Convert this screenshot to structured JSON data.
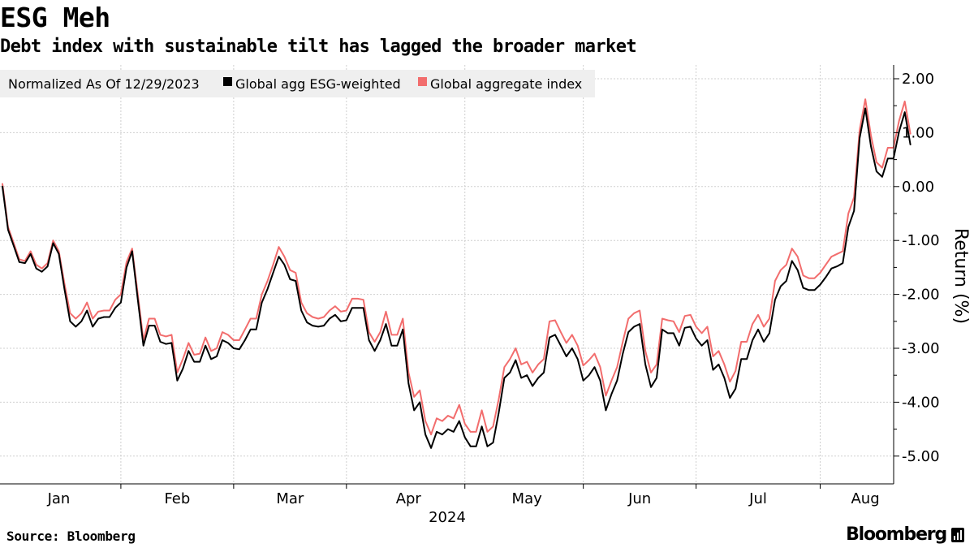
{
  "header": {
    "title": "ESG Meh",
    "subtitle": "Debt index with sustainable tilt has lagged the broader market"
  },
  "footer": {
    "source": "Source: Bloomberg",
    "brand": "Bloomberg"
  },
  "chart_data": {
    "type": "line",
    "title": "ESG Meh",
    "subtitle": "Debt index with sustainable tilt has lagged the broader market",
    "xlabel": "2024",
    "ylabel": "Return (%)",
    "legend_note": "Normalized As Of 12/29/2023",
    "legend_position": "top-left",
    "ylim": [
      -5.5,
      2.2
    ],
    "yticks": [
      2,
      1,
      0,
      -1,
      -2,
      -3,
      -4,
      -5
    ],
    "ytick_labels": [
      "2.00",
      "1.00",
      "0.00",
      "-1.00",
      "-2.00",
      "-3.00",
      "-4.00",
      "-5.00"
    ],
    "xlim": [
      0,
      154
    ],
    "months": [
      {
        "label": "Jan",
        "center": 10,
        "start": 0
      },
      {
        "label": "Feb",
        "center": 31,
        "start": 21
      },
      {
        "label": "Mar",
        "center": 51,
        "start": 41
      },
      {
        "label": "Apr",
        "center": 72,
        "start": 61
      },
      {
        "label": "May",
        "center": 93,
        "start": 82
      },
      {
        "label": "Jun",
        "center": 113,
        "start": 103
      },
      {
        "label": "Jul",
        "center": 134,
        "start": 123
      },
      {
        "label": "Aug",
        "center": 153,
        "start": 145
      }
    ],
    "grid": true,
    "series": [
      {
        "name": "Global agg ESG-weighted",
        "color": "#000000",
        "values": [
          0.0,
          -0.8,
          -1.1,
          -1.4,
          -1.42,
          -1.25,
          -1.52,
          -1.58,
          -1.48,
          -1.05,
          -1.25,
          -1.9,
          -2.5,
          -2.6,
          -2.5,
          -2.3,
          -2.6,
          -2.45,
          -2.42,
          -2.42,
          -2.25,
          -2.15,
          -1.5,
          -1.2,
          -2.1,
          -2.95,
          -2.58,
          -2.58,
          -2.88,
          -2.92,
          -2.9,
          -3.6,
          -3.38,
          -3.05,
          -3.25,
          -3.25,
          -2.95,
          -3.2,
          -3.15,
          -2.85,
          -2.9,
          -3.0,
          -3.02,
          -2.85,
          -2.65,
          -2.65,
          -2.15,
          -1.9,
          -1.6,
          -1.3,
          -1.45,
          -1.72,
          -1.75,
          -2.3,
          -2.52,
          -2.58,
          -2.6,
          -2.58,
          -2.45,
          -2.38,
          -2.5,
          -2.48,
          -2.25,
          -2.25,
          -2.25,
          -2.85,
          -3.05,
          -2.85,
          -2.55,
          -2.95,
          -2.95,
          -2.65,
          -3.65,
          -4.15,
          -4.0,
          -4.6,
          -4.85,
          -4.55,
          -4.6,
          -4.5,
          -4.55,
          -4.35,
          -4.65,
          -4.82,
          -4.82,
          -4.45,
          -4.82,
          -4.75,
          -4.2,
          -3.55,
          -3.45,
          -3.22,
          -3.55,
          -3.5,
          -3.7,
          -3.55,
          -3.45,
          -2.8,
          -2.75,
          -2.95,
          -3.15,
          -3.0,
          -3.2,
          -3.6,
          -3.5,
          -3.35,
          -3.6,
          -4.15,
          -3.85,
          -3.6,
          -3.1,
          -2.7,
          -2.6,
          -2.55,
          -3.3,
          -3.72,
          -3.55,
          -2.65,
          -2.72,
          -2.72,
          -2.95,
          -2.62,
          -2.6,
          -2.82,
          -2.95,
          -2.85,
          -3.4,
          -3.3,
          -3.55,
          -3.92,
          -3.75,
          -3.2,
          -3.2,
          -2.85,
          -2.65,
          -2.88,
          -2.72,
          -2.1,
          -1.85,
          -1.75,
          -1.38,
          -1.55,
          -1.88,
          -1.92,
          -1.92,
          -1.82,
          -1.68,
          -1.52,
          -1.48,
          -1.42,
          -0.75,
          -0.45,
          0.9,
          1.45,
          0.75,
          0.28,
          0.18,
          0.52,
          0.52,
          1.02,
          1.38,
          0.78
        ]
      },
      {
        "name": "Global aggregate index",
        "color": "#f26d6d",
        "values": [
          0.05,
          -0.75,
          -1.05,
          -1.35,
          -1.38,
          -1.2,
          -1.45,
          -1.52,
          -1.42,
          -1.0,
          -1.2,
          -1.8,
          -2.35,
          -2.45,
          -2.35,
          -2.15,
          -2.45,
          -2.32,
          -2.3,
          -2.3,
          -2.1,
          -2.0,
          -1.4,
          -1.15,
          -2.0,
          -2.85,
          -2.45,
          -2.45,
          -2.75,
          -2.78,
          -2.75,
          -3.45,
          -3.2,
          -2.9,
          -3.12,
          -3.1,
          -2.8,
          -3.05,
          -3.0,
          -2.7,
          -2.75,
          -2.85,
          -2.85,
          -2.65,
          -2.45,
          -2.45,
          -2.0,
          -1.75,
          -1.45,
          -1.12,
          -1.3,
          -1.55,
          -1.6,
          -2.15,
          -2.35,
          -2.42,
          -2.45,
          -2.42,
          -2.3,
          -2.22,
          -2.32,
          -2.3,
          -2.08,
          -2.08,
          -2.1,
          -2.7,
          -2.88,
          -2.7,
          -2.32,
          -2.75,
          -2.75,
          -2.45,
          -3.45,
          -3.9,
          -3.78,
          -4.35,
          -4.6,
          -4.3,
          -4.35,
          -4.25,
          -4.3,
          -4.05,
          -4.4,
          -4.55,
          -4.55,
          -4.15,
          -4.55,
          -4.45,
          -3.95,
          -3.35,
          -3.2,
          -3.0,
          -3.3,
          -3.25,
          -3.45,
          -3.3,
          -3.2,
          -2.5,
          -2.48,
          -2.7,
          -2.9,
          -2.75,
          -2.95,
          -3.32,
          -3.22,
          -3.1,
          -3.35,
          -3.88,
          -3.6,
          -3.35,
          -2.88,
          -2.45,
          -2.35,
          -2.3,
          -3.05,
          -3.45,
          -3.3,
          -2.45,
          -2.48,
          -2.5,
          -2.7,
          -2.4,
          -2.38,
          -2.6,
          -2.72,
          -2.6,
          -3.15,
          -3.05,
          -3.3,
          -3.62,
          -3.42,
          -2.88,
          -2.88,
          -2.55,
          -2.38,
          -2.6,
          -2.45,
          -1.75,
          -1.55,
          -1.45,
          -1.15,
          -1.3,
          -1.65,
          -1.7,
          -1.7,
          -1.6,
          -1.45,
          -1.3,
          -1.25,
          -1.2,
          -0.5,
          -0.2,
          1.05,
          1.62,
          0.95,
          0.45,
          0.35,
          0.72,
          0.72,
          1.22,
          1.58,
          0.98
        ]
      }
    ]
  }
}
